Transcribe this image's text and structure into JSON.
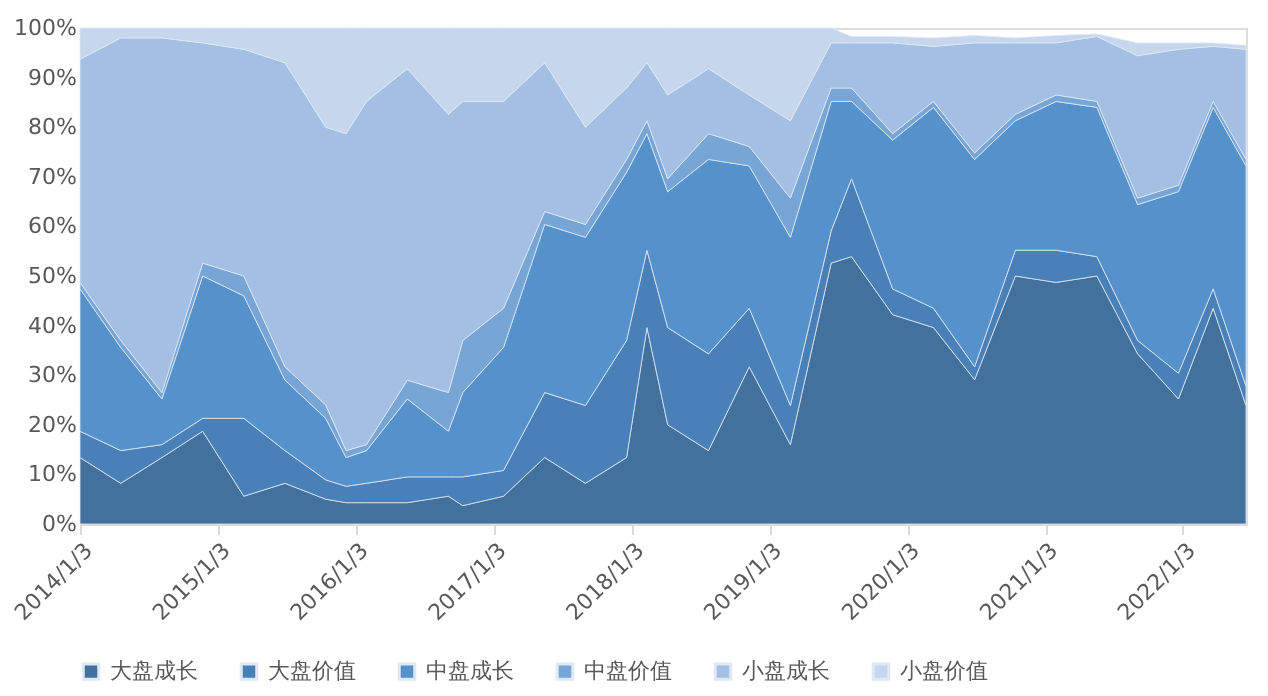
{
  "chart_data": {
    "type": "area",
    "stacked": true,
    "legend": "bottom",
    "x": [
      "2014-01-03",
      "2014-04-21",
      "2014-08-08",
      "2014-11-24",
      "2015-03-13",
      "2015-06-30",
      "2015-10-16",
      "2015-12-09",
      "2016-02-01",
      "2016-05-19",
      "2016-09-05",
      "2016-10-13",
      "2017-01-29",
      "2017-05-18",
      "2017-09-03",
      "2017-12-21",
      "2018-02-13",
      "2018-04-09",
      "2018-07-26",
      "2018-11-11",
      "2019-02-28",
      "2019-06-16",
      "2019-08-09",
      "2019-11-26",
      "2020-03-13",
      "2020-06-30",
      "2020-10-16",
      "2021-02-01",
      "2021-05-20",
      "2021-09-05",
      "2021-12-22",
      "2022-03-24",
      "2022-06-19"
    ],
    "xlim": [
      "2014-01-03",
      "2022-06-19"
    ],
    "xticks": [
      {
        "value": "2014-01-03",
        "label": "2014/1/3"
      },
      {
        "value": "2015-01-03",
        "label": "2015/1/3"
      },
      {
        "value": "2016-01-03",
        "label": "2016/1/3"
      },
      {
        "value": "2017-01-03",
        "label": "2017/1/3"
      },
      {
        "value": "2018-01-03",
        "label": "2018/1/3"
      },
      {
        "value": "2019-01-03",
        "label": "2019/1/3"
      },
      {
        "value": "2020-01-03",
        "label": "2020/1/3"
      },
      {
        "value": "2021-01-03",
        "label": "2021/1/3"
      },
      {
        "value": "2022-01-03",
        "label": "2022/1/3"
      }
    ],
    "ylim": [
      0,
      100
    ],
    "yticks": [
      {
        "value": 0,
        "label": "0%"
      },
      {
        "value": 10,
        "label": "10%"
      },
      {
        "value": 20,
        "label": "20%"
      },
      {
        "value": 30,
        "label": "30%"
      },
      {
        "value": 40,
        "label": "40%"
      },
      {
        "value": 50,
        "label": "50%"
      },
      {
        "value": 60,
        "label": "60%"
      },
      {
        "value": 70,
        "label": "70%"
      },
      {
        "value": 80,
        "label": "80%"
      },
      {
        "value": 90,
        "label": "90%"
      },
      {
        "value": 100,
        "label": "100%"
      }
    ],
    "series": [
      {
        "name": "大盘成长",
        "color": "#41719c",
        "values": [
          13.4,
          8.2,
          13.4,
          18.7,
          5.6,
          8.2,
          5.0,
          4.3,
          4.3,
          4.3,
          5.6,
          3.7,
          5.6,
          13.4,
          8.2,
          13.4,
          39.6,
          20.0,
          14.8,
          31.7,
          16.0,
          52.6,
          53.9,
          42.2,
          39.6,
          29.1,
          50.0,
          48.7,
          50.0,
          34.3,
          25.2,
          43.5,
          23.9
        ]
      },
      {
        "name": "大盘价值",
        "color": "#4a80b8",
        "values": [
          5.3,
          6.6,
          2.6,
          2.6,
          15.7,
          6.6,
          3.9,
          3.3,
          3.9,
          5.2,
          3.9,
          5.8,
          5.2,
          13.1,
          15.7,
          23.6,
          15.6,
          19.6,
          19.5,
          11.8,
          7.9,
          6.5,
          15.7,
          5.2,
          3.9,
          2.6,
          5.2,
          6.5,
          3.9,
          2.7,
          5.2,
          3.9,
          3.9
        ]
      },
      {
        "name": "中盘成长",
        "color": "#5592cb",
        "values": [
          28.7,
          20.8,
          9.2,
          28.7,
          24.7,
          14.2,
          12.4,
          5.8,
          6.6,
          15.7,
          9.2,
          17.0,
          24.8,
          33.9,
          33.9,
          33.9,
          23.5,
          27.4,
          39.2,
          28.7,
          33.9,
          26.1,
          15.6,
          30.0,
          40.5,
          41.8,
          26.1,
          30.0,
          30.1,
          27.4,
          36.6,
          36.6,
          44.4
        ]
      },
      {
        "name": "中盘价值",
        "color": "#76a5d6",
        "values": [
          1.3,
          1.4,
          1.3,
          2.6,
          4.0,
          2.7,
          2.7,
          1.4,
          1.2,
          3.8,
          7.8,
          10.5,
          7.9,
          2.6,
          2.6,
          2.6,
          2.6,
          2.6,
          5.2,
          3.9,
          7.9,
          2.7,
          2.7,
          1.3,
          1.2,
          1.3,
          1.3,
          1.3,
          1.2,
          1.3,
          1.3,
          1.2,
          1.3
        ]
      },
      {
        "name": "小盘成长",
        "color": "#a3bfe3",
        "values": [
          45.0,
          61.0,
          71.5,
          44.4,
          45.7,
          61.3,
          56.0,
          63.9,
          69.2,
          62.8,
          56.1,
          48.2,
          41.7,
          30.0,
          19.6,
          14.4,
          11.7,
          16.9,
          13.1,
          10.4,
          15.6,
          9.1,
          9.1,
          18.3,
          11.1,
          22.2,
          14.4,
          10.5,
          13.1,
          28.7,
          27.4,
          11.1,
          22.2
        ]
      },
      {
        "name": "小盘价值",
        "color": "#c6d6ec",
        "values": [
          6.3,
          2.0,
          2.0,
          3.0,
          4.3,
          7.0,
          20.0,
          21.3,
          14.8,
          8.2,
          17.4,
          14.8,
          14.8,
          7.0,
          20.0,
          12.1,
          7.0,
          13.5,
          8.2,
          13.5,
          18.7,
          3.0,
          1.3,
          1.3,
          1.7,
          1.5,
          1.0,
          1.5,
          0.5,
          2.6,
          1.3,
          0.7,
          0.8
        ]
      }
    ]
  }
}
